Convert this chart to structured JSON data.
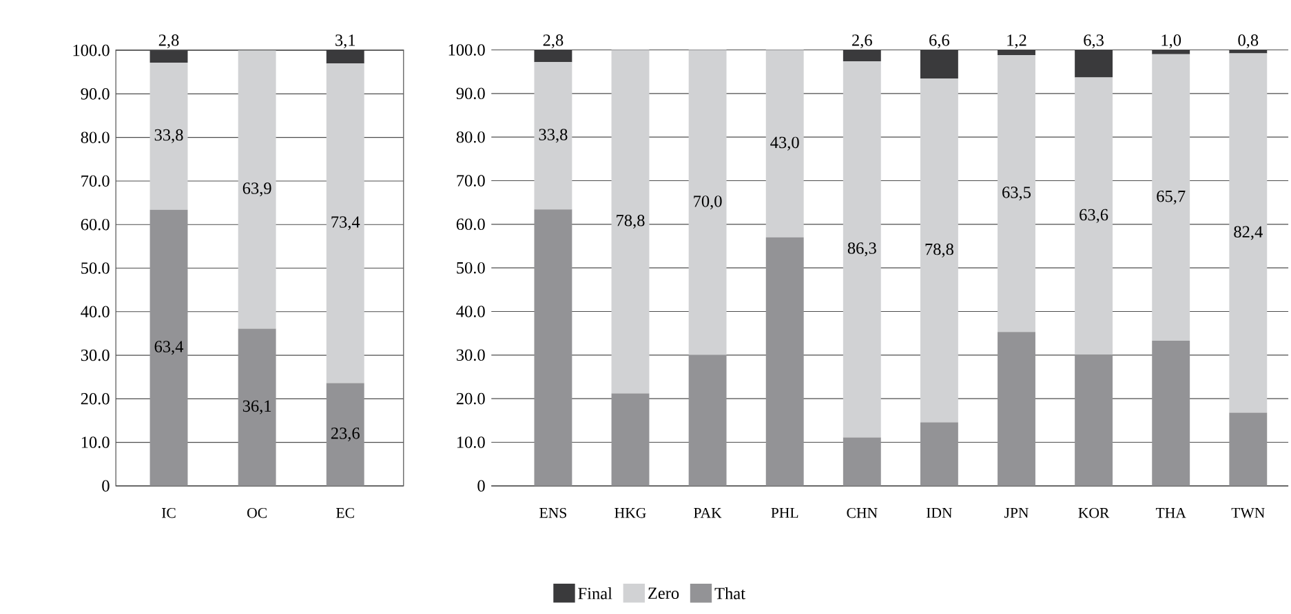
{
  "chart_data": [
    {
      "type": "bar",
      "stacked": true,
      "categories": [
        "IC",
        "OC",
        "EC"
      ],
      "ylim": [
        0,
        100.1
      ],
      "yticks": [
        {
          "value": 0,
          "label": "0"
        },
        {
          "value": 10,
          "label": "10.0"
        },
        {
          "value": 20,
          "label": "20.0"
        },
        {
          "value": 30,
          "label": "30.0"
        },
        {
          "value": 40,
          "label": "40.0"
        },
        {
          "value": 50,
          "label": "50.0"
        },
        {
          "value": 60,
          "label": "60.0"
        },
        {
          "value": 70,
          "label": "70.0"
        },
        {
          "value": 80,
          "label": "80.0"
        },
        {
          "value": 90,
          "label": "90.0"
        },
        {
          "value": 100,
          "label": "100.0"
        }
      ],
      "grid": "y",
      "series": [
        {
          "color": "#939396",
          "values": [
            63.4,
            36.1,
            23.6
          ],
          "value_labels": [
            "63,4",
            "36,1",
            "23,6"
          ]
        },
        {
          "color": "#d1d2d4",
          "values": [
            33.8,
            63.9,
            73.4
          ],
          "value_labels": [
            "33,8",
            "63,9",
            "73,4"
          ]
        },
        {
          "color": "#3a3a3c",
          "values": [
            2.8,
            0,
            3.1
          ],
          "value_labels": [
            "2,8",
            null,
            "3,1"
          ]
        }
      ]
    },
    {
      "type": "bar",
      "stacked": true,
      "categories": [
        "ENS",
        "HKG",
        "PAK",
        "PHL",
        "CHN",
        "IDN",
        "JPN",
        "KOR",
        "THA",
        "TWN"
      ],
      "ylim": [
        0,
        100
      ],
      "yticks": [
        {
          "value": 0,
          "label": "0"
        },
        {
          "value": 10,
          "label": "10.0"
        },
        {
          "value": 20,
          "label": "20.0"
        },
        {
          "value": 30,
          "label": "30.0"
        },
        {
          "value": 40,
          "label": "40.0"
        },
        {
          "value": 50,
          "label": "50.0"
        },
        {
          "value": 60,
          "label": "60.0"
        },
        {
          "value": 70,
          "label": "70.0"
        },
        {
          "value": 80,
          "label": "80.0"
        },
        {
          "value": 90,
          "label": "90.0"
        },
        {
          "value": 100,
          "label": "100.0"
        }
      ],
      "grid": "y",
      "legend": "bottom",
      "series": [
        {
          "name": "That",
          "color": "#939396",
          "values": [
            63.4,
            21.2,
            30.0,
            57.0,
            11.1,
            14.6,
            35.3,
            30.1,
            33.3,
            16.8
          ],
          "value_labels": [
            null,
            null,
            null,
            null,
            null,
            null,
            null,
            null,
            null,
            null
          ]
        },
        {
          "name": "Zero",
          "color": "#d1d2d4",
          "values": [
            33.8,
            78.8,
            70.0,
            43.0,
            86.3,
            78.8,
            63.5,
            63.6,
            65.7,
            82.4
          ],
          "value_labels": [
            "33,8",
            "78,8",
            "70,0",
            "43,0",
            "86,3",
            "78,8",
            "63,5",
            "63,6",
            "65,7",
            "82,4"
          ]
        },
        {
          "name": "Final",
          "color": "#3a3a3c",
          "values": [
            2.8,
            0,
            0,
            0,
            2.6,
            6.6,
            1.2,
            6.3,
            1.0,
            0.8
          ],
          "value_labels": [
            "2,8",
            null,
            null,
            null,
            "2,6",
            "6,6",
            "1,2",
            "6,3",
            "1,0",
            "0,8"
          ]
        }
      ]
    }
  ]
}
